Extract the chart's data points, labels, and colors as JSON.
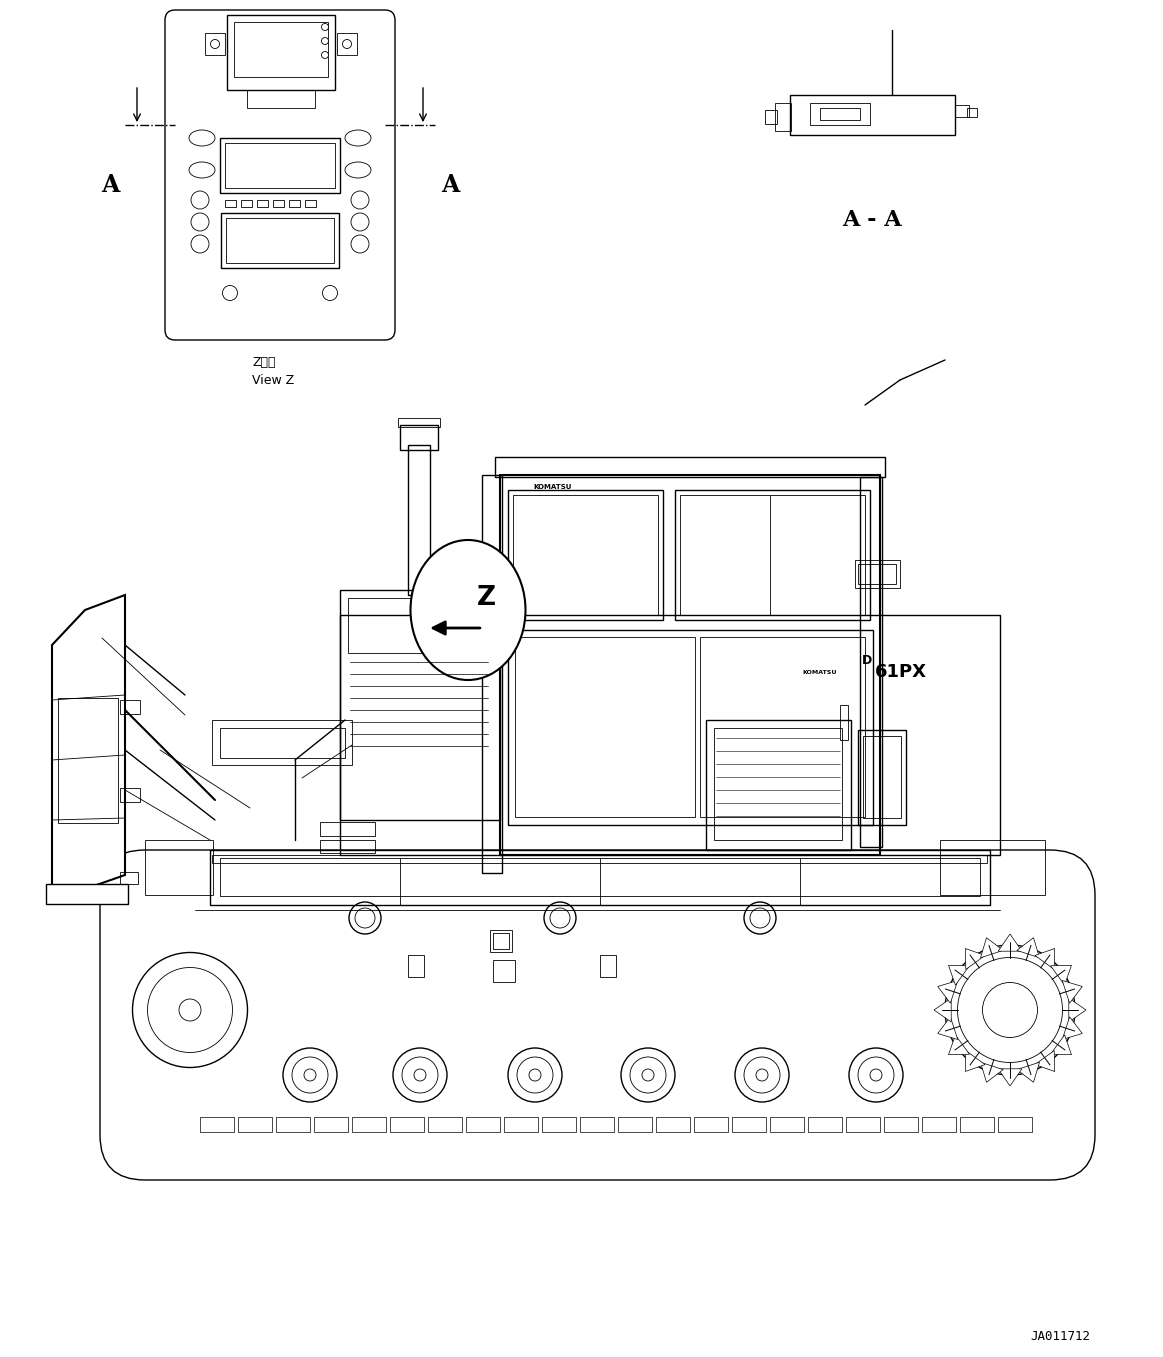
{
  "background_color": "#ffffff",
  "line_color": "#000000",
  "fig_width": 11.63,
  "fig_height": 13.57,
  "dpi": 100,
  "document_number": "JA011712",
  "view_z_label_jp": "Z　視",
  "view_z_label_en": "View Z",
  "section_label": "A - A",
  "label_A_left": "A",
  "label_A_right": "A"
}
